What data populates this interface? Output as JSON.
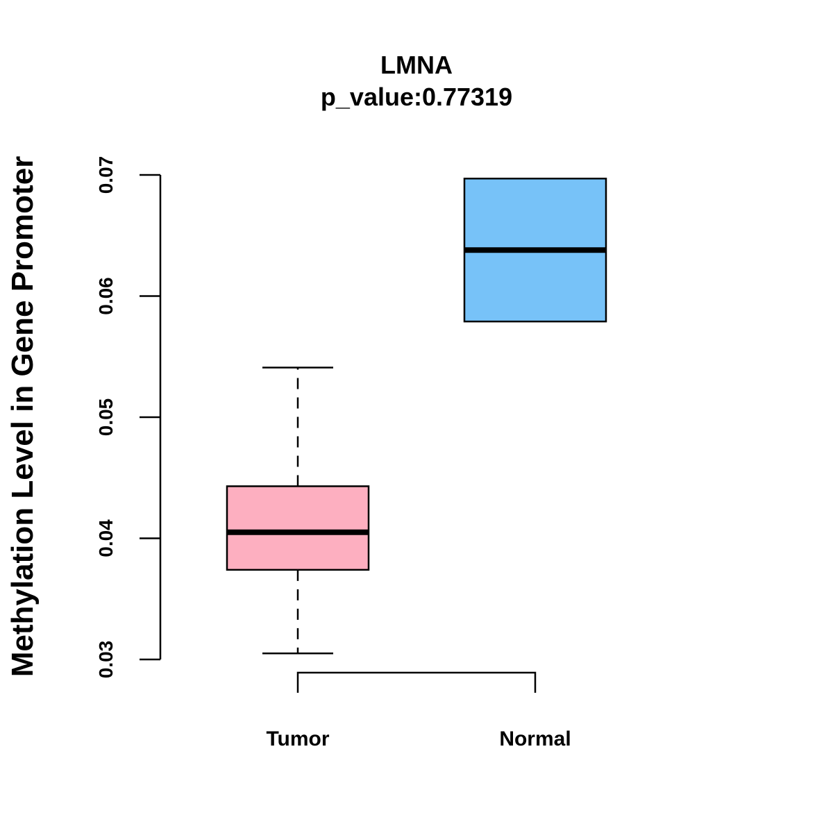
{
  "chart_data": {
    "type": "boxplot",
    "title": "LMNA",
    "subtitle": "p_value:0.77319",
    "xlabel": "",
    "ylabel": "Methylation Level in Gene Promoter",
    "ylim": [
      0.03,
      0.07
    ],
    "yticks": [
      0.03,
      0.04,
      0.05,
      0.06,
      0.07
    ],
    "ytick_labels": [
      "0.03",
      "0.04",
      "0.05",
      "0.06",
      "0.07"
    ],
    "categories": [
      "Tumor",
      "Normal"
    ],
    "boxes": [
      {
        "name": "Tumor",
        "whisker_low": 0.0305,
        "q1": 0.0374,
        "median": 0.0405,
        "q3": 0.0443,
        "whisker_high": 0.0541,
        "color": "#FDAFC0"
      },
      {
        "name": "Normal",
        "whisker_low": 0.0579,
        "q1": 0.0579,
        "median": 0.0638,
        "q3": 0.0697,
        "whisker_high": 0.0697,
        "color": "#77C2F8"
      }
    ],
    "comparison_bracket": [
      "Tumor",
      "Normal"
    ],
    "grid": false,
    "legend": "none"
  }
}
